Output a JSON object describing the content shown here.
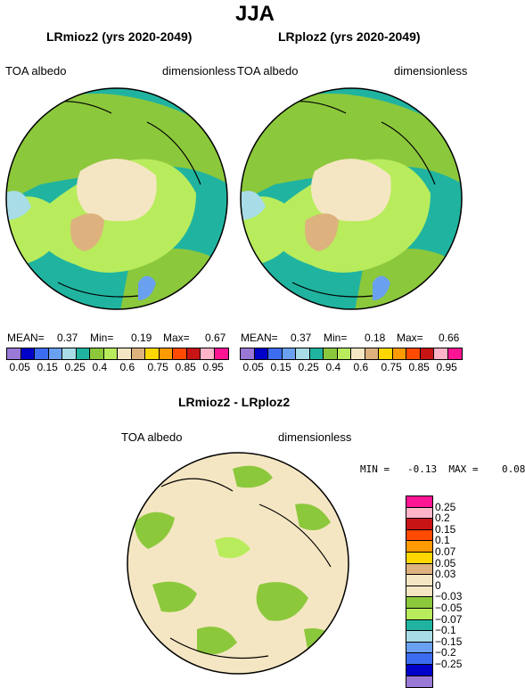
{
  "title": "JJA",
  "panels": [
    {
      "title": "LRmioz2 (yrs 2020-2049)",
      "left_label": "TOA albedo",
      "right_label": "dimensionless",
      "mean_label": "MEAN=",
      "mean": "0.37",
      "min_label": "Min=",
      "min": "0.19",
      "max_label": "Max=",
      "max": "0.67"
    },
    {
      "title": "LRploz2 (yrs 2020-2049)",
      "left_label": "TOA albedo",
      "right_label": "dimensionless",
      "mean_label": "MEAN=",
      "mean": "0.37",
      "min_label": "Min=",
      "min": "0.18",
      "max_label": "Max=",
      "max": "0.66"
    }
  ],
  "colorbar": {
    "colors": [
      "#9a79d6",
      "#0000c8",
      "#3c6cf0",
      "#6aa0f0",
      "#a8dce6",
      "#20b4a0",
      "#8cc83c",
      "#b8ec5c",
      "#f5e6c3",
      "#ddb27e",
      "#ffd700",
      "#ff9a00",
      "#ff4a00",
      "#c81414",
      "#ffb4c8",
      "#ff1493"
    ],
    "labels": [
      "0.05",
      "0.15",
      "0.25",
      "0.4",
      "0.6",
      "0.75",
      "0.85",
      "0.95"
    ]
  },
  "diff": {
    "title": "LRmioz2 - LRploz2",
    "left_label": "TOA albedo",
    "right_label": "dimensionless",
    "stats": "MIN =   -0.13  MAX =    0.08",
    "colors": [
      "#ff1493",
      "#ffb4c8",
      "#c81414",
      "#ff4a00",
      "#ff9a00",
      "#ffd700",
      "#ddb27e",
      "#f5e6c3",
      "#f5e6c3",
      "#8cc83c",
      "#b8ec5c",
      "#20b4a0",
      "#a8dce6",
      "#6aa0f0",
      "#3c6cf0",
      "#0000c8",
      "#9a79d6"
    ],
    "labels": [
      "0.25",
      "0.2",
      "0.15",
      "0.1",
      "0.07",
      "0.05",
      "0.03",
      "0",
      "−0.03",
      "−0.05",
      "−0.07",
      "−0.1",
      "−0.15",
      "−0.2",
      "−0.25"
    ]
  }
}
